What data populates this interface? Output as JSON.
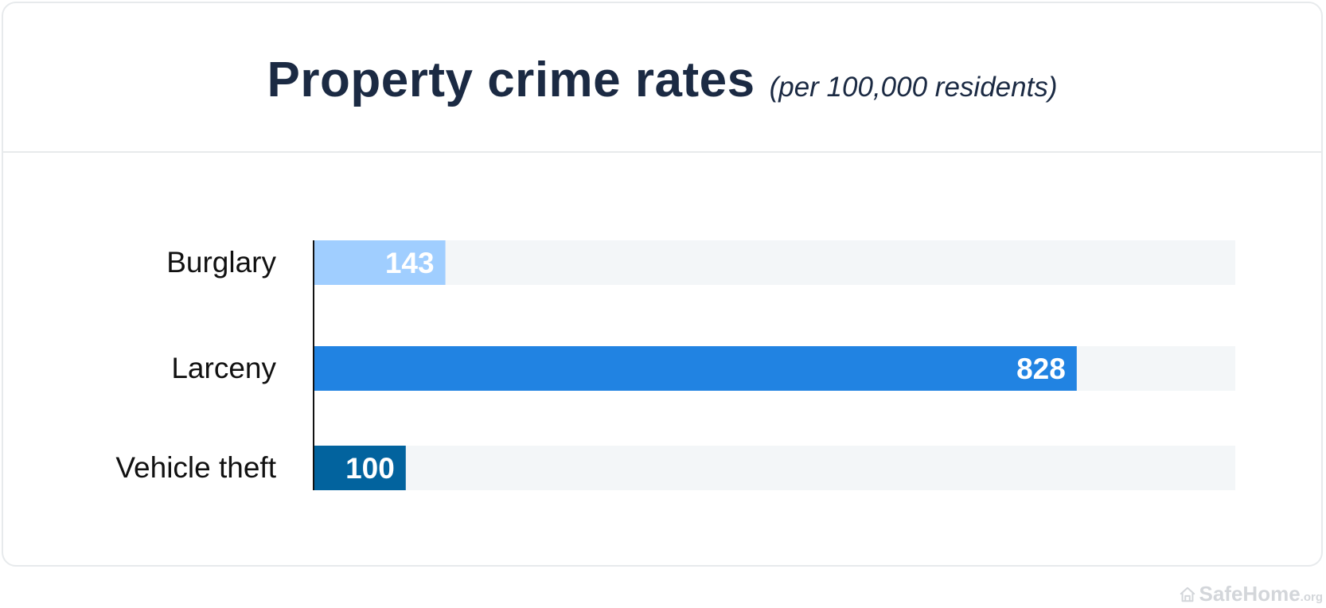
{
  "header": {
    "title": "Property crime rates",
    "subtitle": "(per 100,000 residents)"
  },
  "chart_data": {
    "type": "bar",
    "orientation": "horizontal",
    "title": "Property crime rates",
    "subtitle": "(per 100,000 residents)",
    "categories": [
      "Burglary",
      "Larceny",
      "Vehicle theft"
    ],
    "values": [
      143,
      828,
      100
    ],
    "xlim": [
      0,
      1000
    ],
    "grid": false,
    "legend": "none",
    "colors": [
      "#a0ceff",
      "#2183e2",
      "#02639e"
    ],
    "track_color": "#f3f6f8",
    "label_color": "#ffffff"
  },
  "watermark": {
    "main": "SafeHome",
    "suffix": ".org",
    "icon": "house-icon"
  }
}
